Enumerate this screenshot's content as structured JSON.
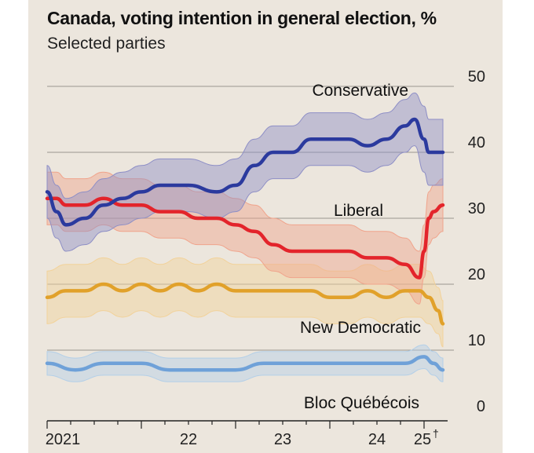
{
  "header": {
    "title": "Canada, voting intention in general election, %",
    "subtitle": "Selected parties"
  },
  "chart_data": {
    "type": "line",
    "title": "Canada, voting intention in general election, %",
    "subtitle": "Selected parties",
    "ylim": [
      0,
      50
    ],
    "yticks": [
      0,
      10,
      20,
      30,
      40,
      50
    ],
    "xlim": [
      2021.0,
      2025.25
    ],
    "xticks": [
      {
        "label": "2021",
        "x": 2021.0
      },
      {
        "label": "22",
        "x": 2022.0
      },
      {
        "label": "23",
        "x": 2023.0
      },
      {
        "label": "24",
        "x": 2024.0
      },
      {
        "label": "25",
        "x": 2025.0,
        "note": "†"
      }
    ],
    "grid": true,
    "series": [
      {
        "name": "Conservative",
        "color": "#2b3a9e",
        "band_color": "#8e8fc6",
        "x": [
          2021.0,
          2021.1,
          2021.2,
          2021.4,
          2021.6,
          2021.8,
          2022.0,
          2022.2,
          2022.5,
          2022.8,
          2023.0,
          2023.2,
          2023.4,
          2023.6,
          2023.8,
          2024.0,
          2024.2,
          2024.4,
          2024.6,
          2024.8,
          2024.9,
          2025.0,
          2025.05,
          2025.1,
          2025.2
        ],
        "values": [
          34,
          31,
          29,
          30,
          32,
          33,
          34,
          35,
          35,
          34,
          35,
          38,
          40,
          40,
          42,
          42,
          42,
          41,
          42,
          44,
          45,
          42,
          40,
          40,
          40
        ],
        "band": [
          4,
          4,
          4,
          4,
          4,
          4,
          4,
          4,
          4,
          4,
          4,
          4,
          4,
          4,
          4,
          4,
          4,
          4,
          4,
          4,
          4,
          5,
          5,
          5,
          5
        ]
      },
      {
        "name": "Liberal",
        "color": "#e3242b",
        "band_color": "#f0a48c",
        "x": [
          2021.0,
          2021.1,
          2021.2,
          2021.4,
          2021.6,
          2021.8,
          2022.0,
          2022.2,
          2022.4,
          2022.6,
          2022.8,
          2023.0,
          2023.2,
          2023.4,
          2023.6,
          2023.8,
          2024.0,
          2024.2,
          2024.4,
          2024.6,
          2024.8,
          2024.95,
          2025.0,
          2025.05,
          2025.1,
          2025.2
        ],
        "values": [
          33,
          33,
          32,
          32,
          33,
          32,
          32,
          31,
          31,
          30,
          30,
          29,
          28,
          26,
          25,
          25,
          25,
          25,
          24,
          24,
          23,
          21,
          25,
          30,
          31,
          32
        ],
        "band": [
          4,
          4,
          4,
          4,
          4,
          4,
          4,
          4,
          4,
          4,
          4,
          4,
          4,
          4,
          4,
          4,
          4,
          4,
          4,
          4,
          4,
          4,
          4,
          4,
          4,
          4
        ]
      },
      {
        "name": "New Democratic",
        "color": "#e1a12a",
        "band_color": "#f2d29a",
        "x": [
          2021.0,
          2021.2,
          2021.4,
          2021.6,
          2021.8,
          2022.0,
          2022.2,
          2022.4,
          2022.6,
          2022.8,
          2023.0,
          2023.2,
          2023.4,
          2023.6,
          2023.8,
          2024.0,
          2024.2,
          2024.4,
          2024.6,
          2024.8,
          2024.95,
          2025.05,
          2025.15,
          2025.2
        ],
        "values": [
          18,
          19,
          19,
          20,
          19,
          20,
          19,
          20,
          19,
          20,
          19,
          19,
          19,
          19,
          19,
          18,
          18,
          19,
          18,
          19,
          19,
          18,
          16,
          14
        ],
        "band": [
          4,
          4,
          4,
          4,
          4,
          4,
          4,
          4,
          4,
          4,
          4,
          4,
          4,
          4,
          4,
          4,
          4,
          4,
          4,
          4,
          4,
          4,
          3.5,
          3.5
        ]
      },
      {
        "name": "Bloc Québécois",
        "color": "#6fa1d8",
        "band_color": "#b3cfe8",
        "x": [
          2021.0,
          2021.3,
          2021.6,
          2022.0,
          2022.3,
          2022.6,
          2023.0,
          2023.3,
          2023.6,
          2024.0,
          2024.3,
          2024.6,
          2024.8,
          2025.0,
          2025.1,
          2025.2
        ],
        "values": [
          8,
          7,
          8,
          8,
          7,
          7,
          7,
          8,
          8,
          8,
          8,
          8,
          8,
          9,
          8,
          7
        ],
        "band": [
          1.8,
          1.8,
          1.8,
          1.8,
          1.8,
          1.8,
          1.8,
          1.8,
          1.8,
          1.8,
          1.8,
          1.8,
          1.8,
          1.8,
          1.8,
          1.8
        ]
      }
    ],
    "series_labels": [
      {
        "text": "Conservative"
      },
      {
        "text": "Liberal"
      },
      {
        "text": "New Democratic"
      },
      {
        "text": "Bloc Québécois"
      }
    ]
  }
}
